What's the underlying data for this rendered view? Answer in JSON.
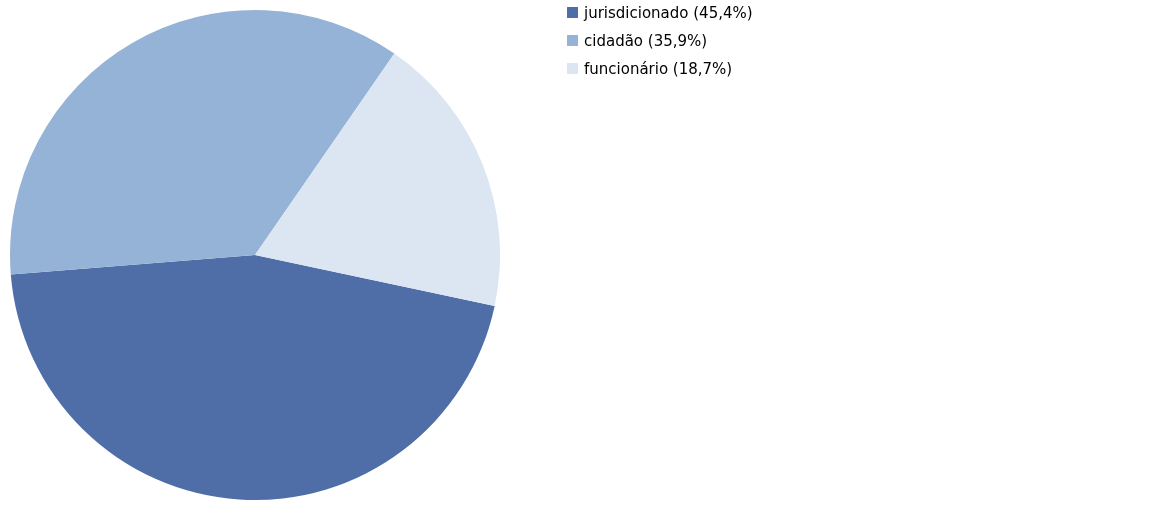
{
  "chart_data": {
    "type": "pie",
    "categories": [
      "jurisdicionado (45,4%)",
      "cidadão (35,9%)",
      "funcionário (18,7%)"
    ],
    "values": [
      45.4,
      35.9,
      18.7
    ],
    "colors": [
      "#4f6ea8",
      "#95b3d7",
      "#dce6f2"
    ],
    "legend": "right"
  }
}
